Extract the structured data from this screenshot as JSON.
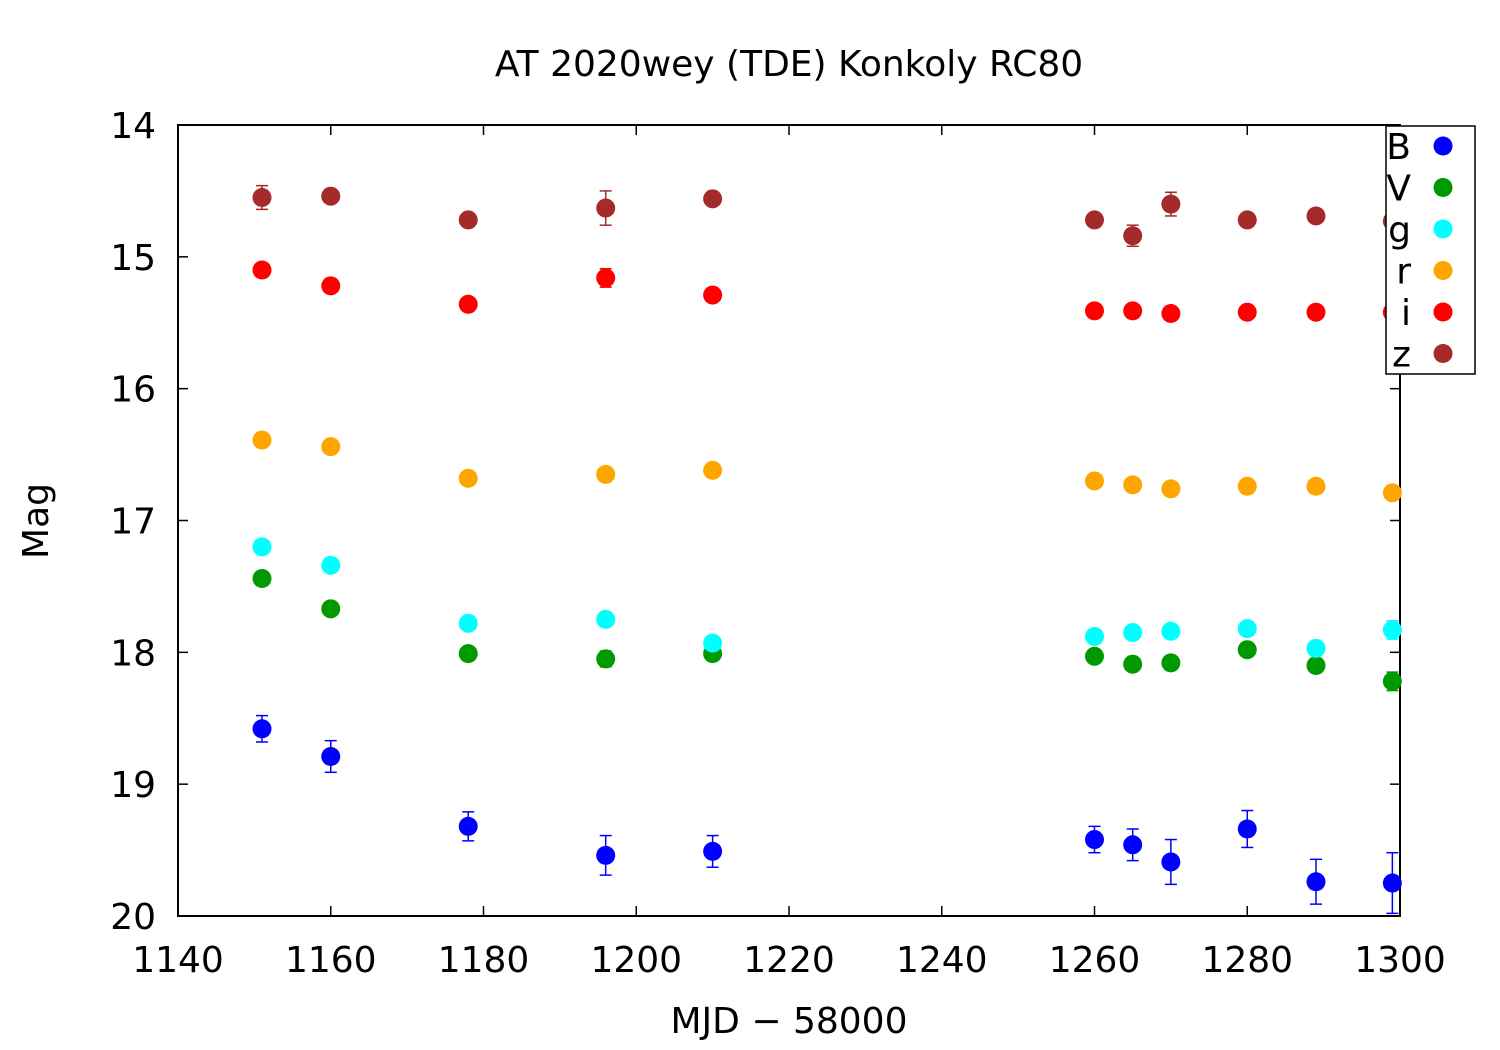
{
  "chart_data": {
    "type": "scatter",
    "title": "AT 2020wey (TDE) Konkoly RC80",
    "xlabel": "MJD − 58000",
    "ylabel": "Mag",
    "xlim": [
      1140,
      1300
    ],
    "ylim": [
      14,
      20
    ],
    "y_inverted": true,
    "grid": false,
    "legend_position": "top-right",
    "x_ticks": [
      "1140",
      "1160",
      "1180",
      "1200",
      "1220",
      "1240",
      "1260",
      "1280",
      "1300"
    ],
    "y_ticks": [
      "14",
      "15",
      "16",
      "17",
      "18",
      "19",
      "20"
    ],
    "series": [
      {
        "name": "B",
        "color": "#0000ff",
        "x": [
          1151,
          1160,
          1178,
          1196,
          1210,
          1260,
          1265,
          1270,
          1280,
          1289,
          1299
        ],
        "y": [
          18.58,
          18.79,
          19.32,
          19.54,
          19.51,
          19.42,
          19.46,
          19.59,
          19.34,
          19.74,
          19.75
        ],
        "err": [
          0.1,
          0.12,
          0.11,
          0.15,
          0.12,
          0.1,
          0.12,
          0.17,
          0.14,
          0.17,
          0.23
        ]
      },
      {
        "name": "V",
        "color": "#009900",
        "x": [
          1151,
          1160,
          1178,
          1196,
          1210,
          1260,
          1265,
          1270,
          1280,
          1289,
          1299
        ],
        "y": [
          17.44,
          17.67,
          18.01,
          18.05,
          18.01,
          18.03,
          18.09,
          18.08,
          17.98,
          18.1,
          18.22
        ],
        "err": [
          0.03,
          0.03,
          0.03,
          0.06,
          0.04,
          0.03,
          0.03,
          0.03,
          0.04,
          0.04,
          0.07
        ]
      },
      {
        "name": "g",
        "color": "#00ffff",
        "x": [
          1151,
          1160,
          1178,
          1196,
          1210,
          1260,
          1265,
          1270,
          1280,
          1289,
          1299
        ],
        "y": [
          17.2,
          17.34,
          17.78,
          17.75,
          17.93,
          17.88,
          17.85,
          17.84,
          17.82,
          17.97,
          17.83
        ],
        "err": [
          0.03,
          0.03,
          0.03,
          0.03,
          0.04,
          0.03,
          0.03,
          0.03,
          0.03,
          0.04,
          0.07
        ]
      },
      {
        "name": "r",
        "color": "#ffa500",
        "x": [
          1151,
          1160,
          1178,
          1196,
          1210,
          1260,
          1265,
          1270,
          1280,
          1289,
          1299
        ],
        "y": [
          16.39,
          16.44,
          16.68,
          16.65,
          16.62,
          16.7,
          16.73,
          16.76,
          16.74,
          16.74,
          16.79
        ],
        "err": [
          0.02,
          0.02,
          0.02,
          0.05,
          0.02,
          0.02,
          0.02,
          0.02,
          0.02,
          0.02,
          0.03
        ]
      },
      {
        "name": "i",
        "color": "#ff0000",
        "x": [
          1151,
          1160,
          1178,
          1196,
          1210,
          1260,
          1265,
          1270,
          1280,
          1289,
          1299
        ],
        "y": [
          15.1,
          15.22,
          15.36,
          15.16,
          15.29,
          15.41,
          15.41,
          15.43,
          15.42,
          15.42,
          15.42
        ],
        "err": [
          0.02,
          0.02,
          0.02,
          0.07,
          0.02,
          0.02,
          0.02,
          0.04,
          0.02,
          0.02,
          0.02
        ]
      },
      {
        "name": "z",
        "color": "#a52a2a",
        "x": [
          1151,
          1160,
          1178,
          1196,
          1210,
          1260,
          1265,
          1270,
          1280,
          1289,
          1299
        ],
        "y": [
          14.55,
          14.54,
          14.72,
          14.63,
          14.56,
          14.72,
          14.84,
          14.6,
          14.72,
          14.69,
          14.73
        ],
        "err": [
          0.09,
          0.03,
          0.03,
          0.13,
          0.03,
          0.03,
          0.08,
          0.09,
          0.03,
          0.05,
          0.05
        ]
      }
    ]
  }
}
